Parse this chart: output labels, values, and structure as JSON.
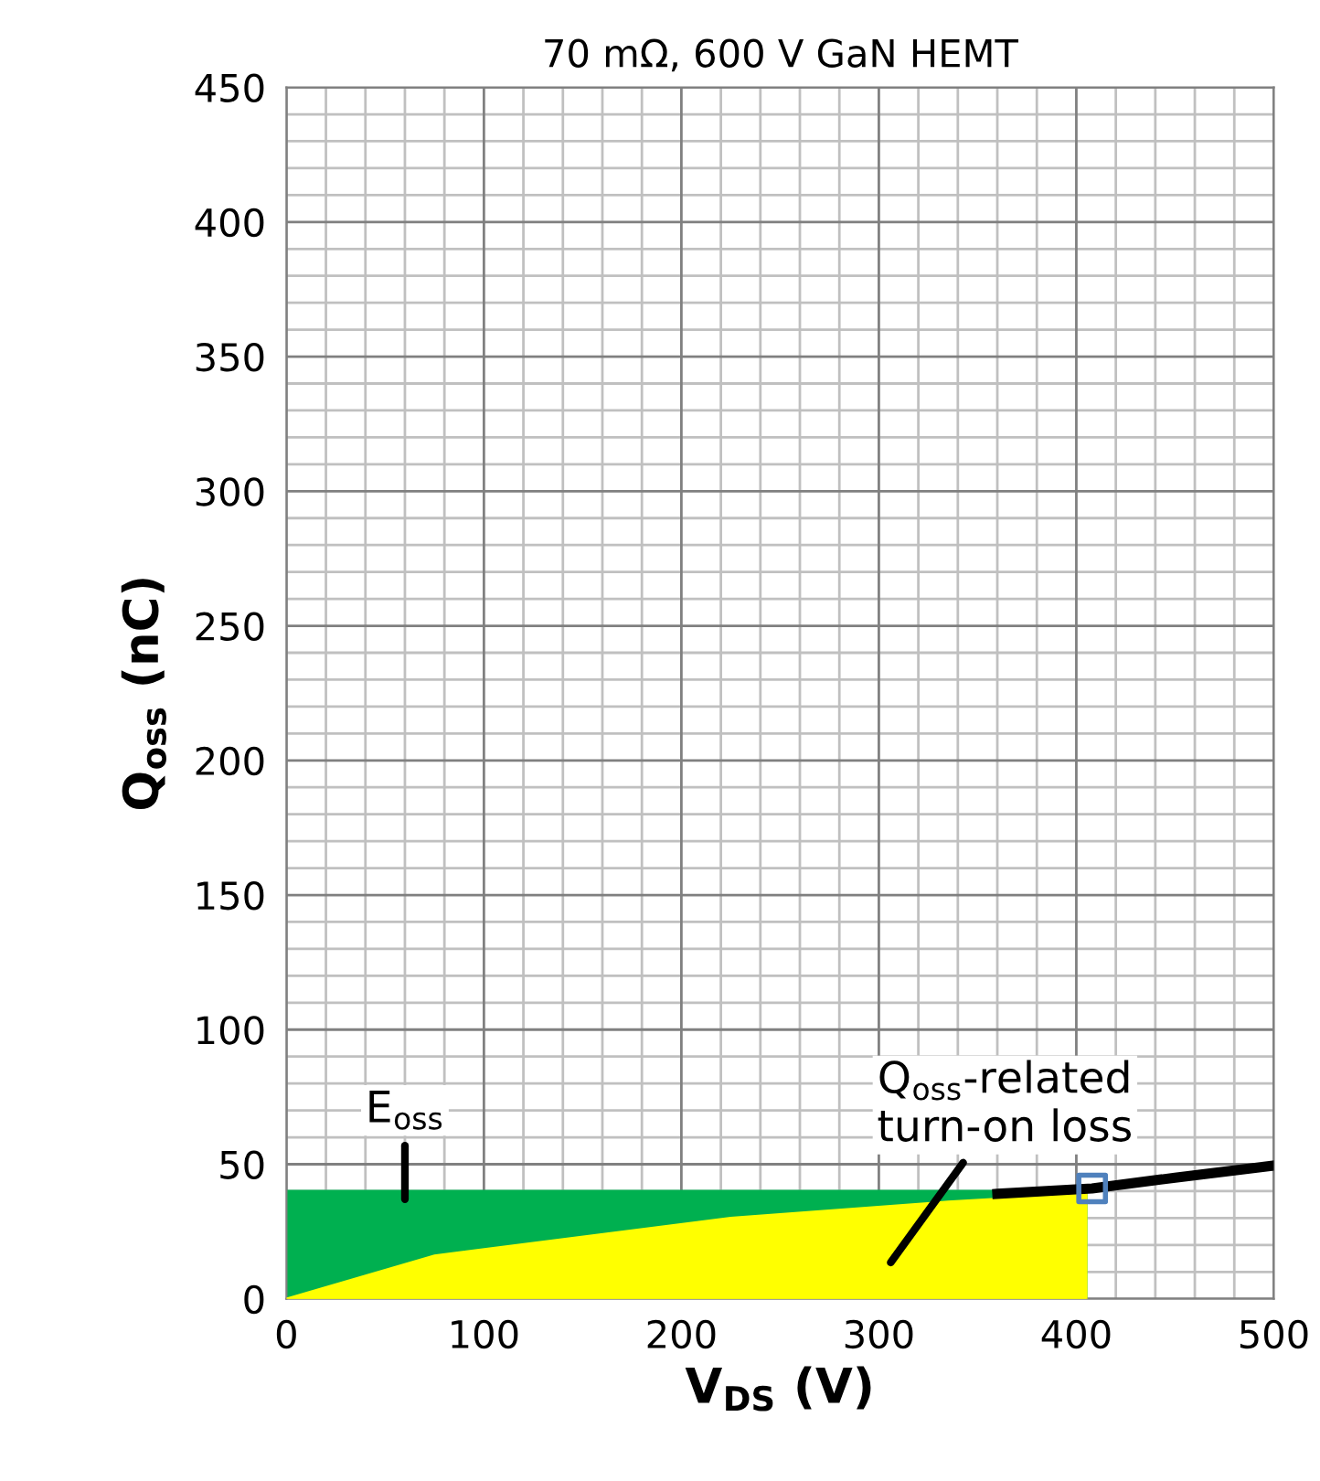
{
  "chart_data": {
    "type": "area",
    "title": "70 mΩ, 600 V GaN HEMT",
    "xlabel": "V$_{DS}$ (V)",
    "ylabel": "Q$_{oss}$ (nC)",
    "xlim": [
      0,
      500
    ],
    "ylim": [
      0,
      450
    ],
    "xticks": [
      0,
      100,
      200,
      300,
      400,
      500
    ],
    "yticks": [
      0,
      50,
      100,
      150,
      200,
      250,
      300,
      350,
      400,
      450
    ],
    "grid": true,
    "series": [
      {
        "color": "#00b050",
        "x": [
          0,
          405
        ],
        "values": [
          40,
          40
        ]
      },
      {
        "color": "#ffff00",
        "x": [
          0,
          75,
          225,
          335,
          405
        ],
        "values": [
          0,
          16,
          30,
          36,
          39
        ]
      },
      {
        "type": "line",
        "color": "#000000",
        "x": [
          360,
          408,
          450,
          500
        ],
        "values": [
          39,
          41,
          45,
          49.5
        ]
      },
      {
        "type": "scatter",
        "color": "#4f81bd",
        "marker": "square",
        "x": [
          408
        ],
        "values": [
          41
        ]
      }
    ],
    "annotations": [
      {
        "text": "E$_{oss}$",
        "x": 60,
        "y": 37
      },
      "Q$_{oss}$-related\nturn-on loss"
    ]
  }
}
